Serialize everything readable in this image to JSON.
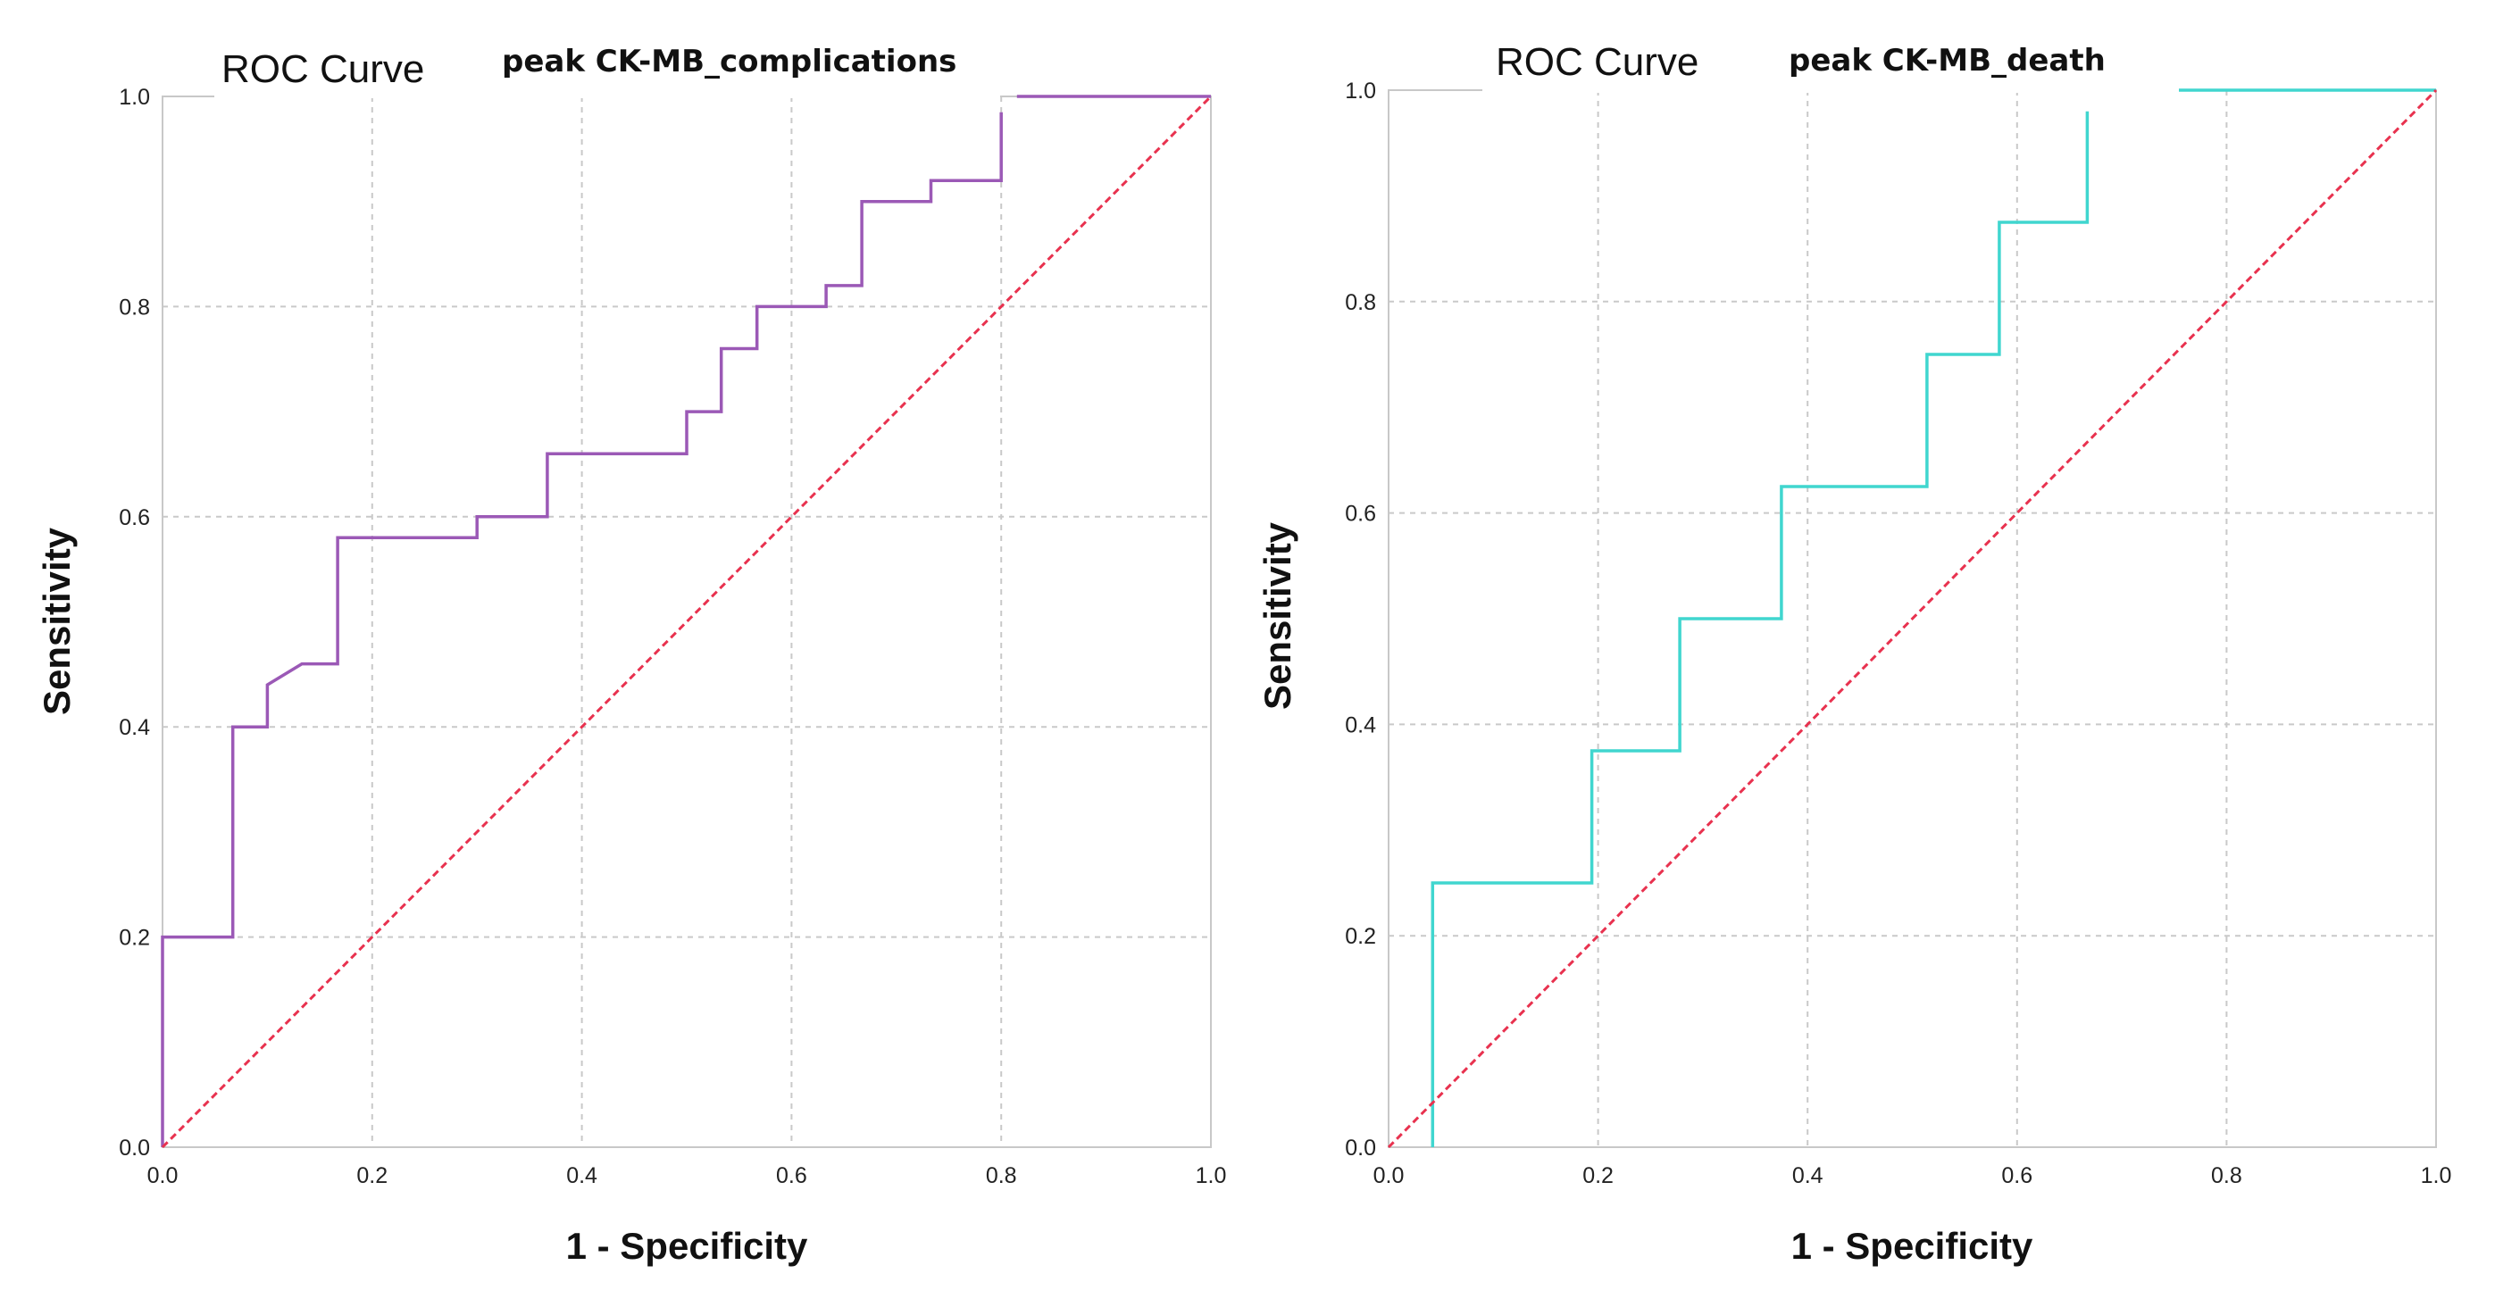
{
  "chart_data": [
    {
      "type": "line",
      "title": "ROC Curve",
      "subtitle": "peak CK-MB_complications",
      "xlabel": "1 - Specificity",
      "ylabel": "Sensitivity",
      "xlim": [
        0,
        1
      ],
      "ylim": [
        0,
        1
      ],
      "x_ticks": [
        "0.0",
        "0.2",
        "0.4",
        "0.6",
        "0.8",
        "1.0"
      ],
      "y_ticks": [
        "0.0",
        "0.2",
        "0.4",
        "0.6",
        "0.8",
        "1.0"
      ],
      "grid": true,
      "series": [
        {
          "name": "peak CK-MB",
          "color": "#9b59b6",
          "x": [
            0,
            0,
            0.067,
            0.067,
            0.1,
            0.1,
            0.133,
            0.167,
            0.167,
            0.3,
            0.3,
            0.367,
            0.367,
            0.5,
            0.5,
            0.533,
            0.533,
            0.567,
            0.567,
            0.633,
            0.633,
            0.667,
            0.667,
            0.733,
            0.733,
            0.8,
            0.8
          ],
          "y": [
            0,
            0.2,
            0.2,
            0.4,
            0.4,
            0.44,
            0.46,
            0.46,
            0.58,
            0.58,
            0.6,
            0.6,
            0.66,
            0.66,
            0.7,
            0.7,
            0.76,
            0.76,
            0.8,
            0.8,
            0.82,
            0.82,
            0.9,
            0.9,
            0.92,
            0.92,
            0.985
          ]
        },
        {
          "name": "peak CK-MB (end)",
          "color": "#9b59b6",
          "x": [
            0.815,
            1.0
          ],
          "y": [
            1.0,
            1.0
          ]
        },
        {
          "name": "Reference Line",
          "color": "#e8324f",
          "dashed": true,
          "x": [
            0,
            1
          ],
          "y": [
            0,
            1
          ]
        }
      ]
    },
    {
      "type": "line",
      "title": "ROC Curve",
      "subtitle": "peak CK-MB_death",
      "xlabel": "1 - Specificity",
      "ylabel": "Sensitivity",
      "xlim": [
        0,
        1
      ],
      "ylim": [
        0,
        1
      ],
      "x_ticks": [
        "0.0",
        "0.2",
        "0.4",
        "0.6",
        "0.8",
        "1.0"
      ],
      "y_ticks": [
        "0.0",
        "0.2",
        "0.4",
        "0.6",
        "0.8",
        "1.0"
      ],
      "grid": true,
      "series": [
        {
          "name": "peak CK-MB",
          "color": "#40d6cf",
          "x": [
            0.042,
            0.042,
            0.194,
            0.194,
            0.278,
            0.278,
            0.375,
            0.375,
            0.514,
            0.514,
            0.583,
            0.583,
            0.667,
            0.667
          ],
          "y": [
            0,
            0.25,
            0.25,
            0.375,
            0.375,
            0.5,
            0.5,
            0.625,
            0.625,
            0.75,
            0.75,
            0.875,
            0.875,
            0.98
          ]
        },
        {
          "name": "peak CK-MB (end)",
          "color": "#40d6cf",
          "x": [
            0.75,
            1.0
          ],
          "y": [
            1.0,
            1.0
          ]
        },
        {
          "name": "Reference Line",
          "color": "#e8324f",
          "dashed": true,
          "x": [
            0,
            1
          ],
          "y": [
            0,
            1
          ]
        }
      ]
    }
  ]
}
